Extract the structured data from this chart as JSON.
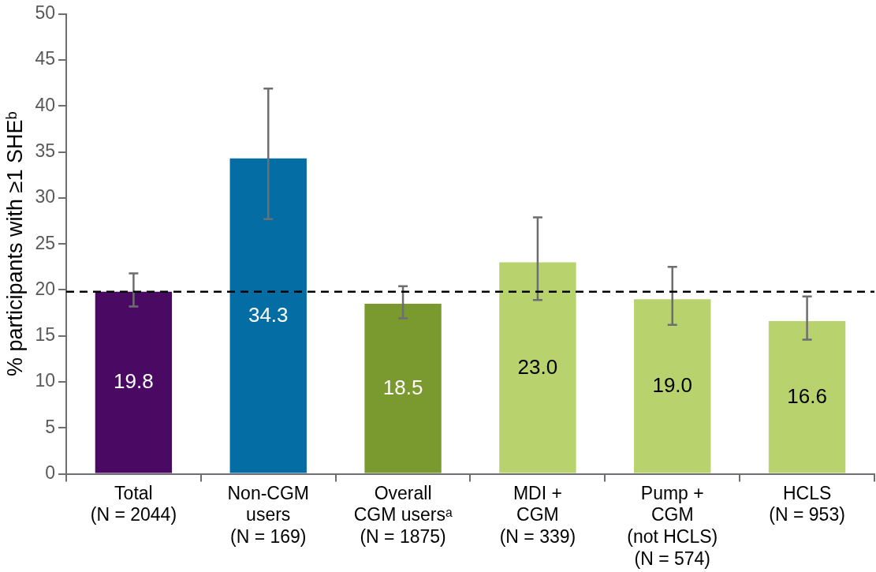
{
  "chart_data": {
    "type": "bar",
    "ylabel": "% participants with ≥1 SHEᵇ",
    "categories": [
      "Total\n(N = 2044)",
      "Non-CGM\nusers\n(N = 169)",
      "Overall\nCGM usersᵃ\n(N = 1875)",
      "MDI +\nCGM\n(N = 339)",
      "Pump +\nCGM\n(not HCLS)\n(N = 574)",
      "HCLS\n(N = 953)"
    ],
    "values": [
      19.8,
      34.3,
      18.5,
      23.0,
      19.0,
      16.6
    ],
    "colors": [
      "#4a0a63",
      "#046ea4",
      "#7a992e",
      "#b8d36e",
      "#b8d36e",
      "#b8d36e"
    ],
    "errors": [
      [
        18.2,
        21.8
      ],
      [
        27.7,
        41.9
      ],
      [
        16.9,
        20.4
      ],
      [
        18.9,
        27.9
      ],
      [
        16.2,
        22.5
      ],
      [
        14.6,
        19.3
      ]
    ],
    "ylim": [
      0,
      50
    ],
    "yticks": [
      0,
      5,
      10,
      15,
      20,
      25,
      30,
      35,
      40,
      45,
      50
    ],
    "ref_lines": [
      {
        "axis": "y",
        "value": 19.8,
        "line_style": "dashed",
        "color": "#000000"
      }
    ],
    "value_labels": [
      "19.8",
      "34.3",
      "18.5",
      "23.0",
      "19.0",
      "16.6"
    ],
    "grid": false,
    "legend": false
  }
}
